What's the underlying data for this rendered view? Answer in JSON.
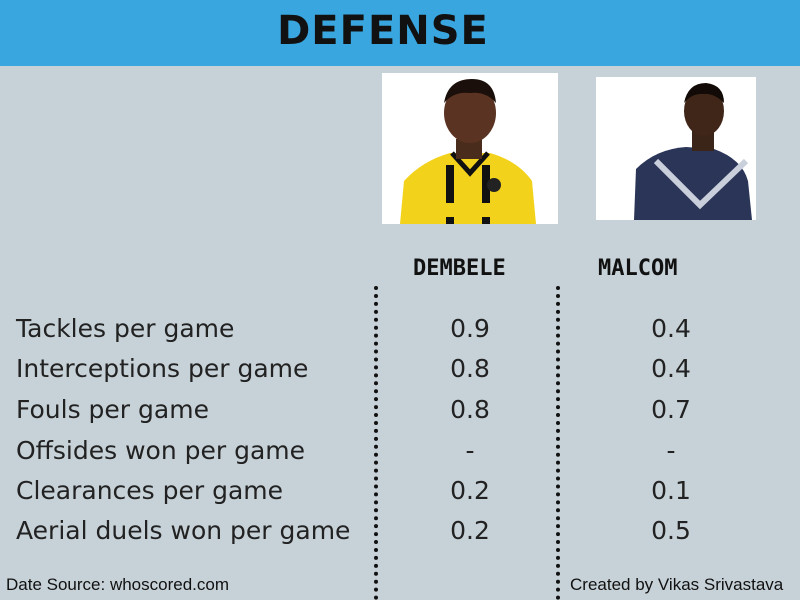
{
  "header": {
    "title": "DEFENSE",
    "background_color": "#3aa6df"
  },
  "players": [
    {
      "name": "DEMBELE",
      "photo_icon": "player-photo-yellow-kit"
    },
    {
      "name": "MALCOM",
      "photo_icon": "player-photo-navy-kit"
    }
  ],
  "stats": [
    {
      "label": "Tackles per game",
      "values": [
        "0.9",
        "0.4"
      ]
    },
    {
      "label": "Interceptions per game",
      "values": [
        "0.8",
        "0.4"
      ]
    },
    {
      "label": "Fouls per game",
      "values": [
        "0.8",
        "0.7"
      ]
    },
    {
      "label": "Offsides won per game",
      "values": [
        "-",
        "-"
      ]
    },
    {
      "label": "Clearances per game",
      "values": [
        "0.2",
        "0.1"
      ]
    },
    {
      "label": "Aerial duels won per game",
      "values": [
        "0.2",
        "0.5"
      ]
    }
  ],
  "footer": {
    "source": "Date Source: whoscored.com",
    "credit": "Created by Vikas Srivastava"
  },
  "colors": {
    "background": "#c7d2d8",
    "accent": "#3aa6df"
  }
}
